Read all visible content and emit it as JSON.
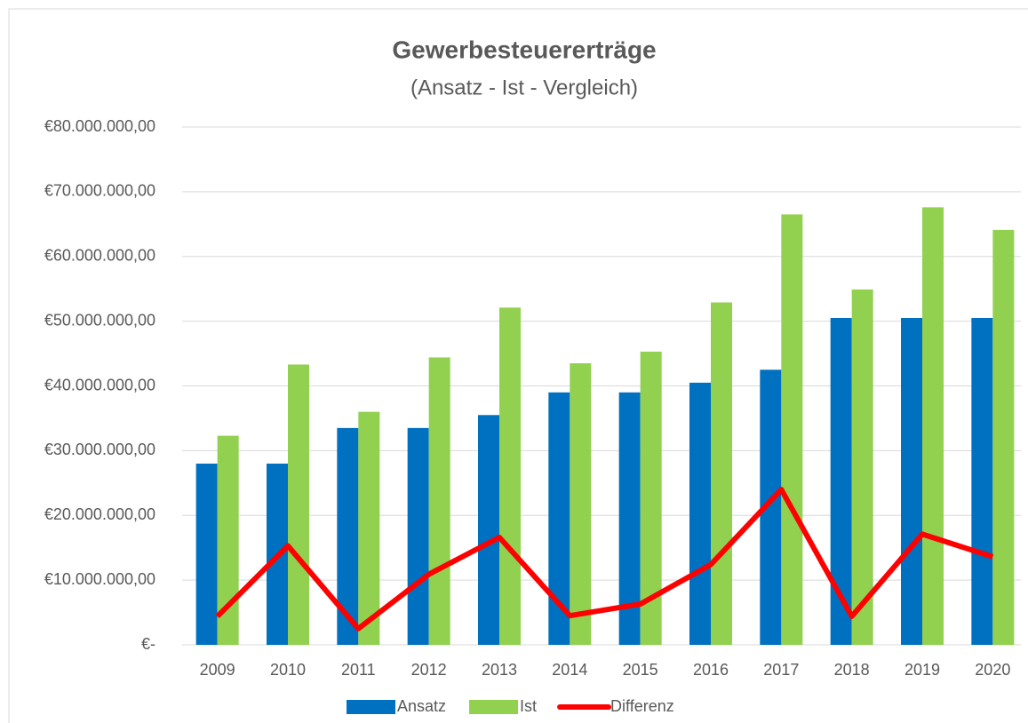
{
  "chart_data": {
    "type": "bar_line",
    "title": "Gewerbesteuererträge",
    "subtitle": "(Ansatz - Ist - Vergleich)",
    "categories": [
      "2009",
      "2010",
      "2011",
      "2012",
      "2013",
      "2014",
      "2015",
      "2016",
      "2017",
      "2018",
      "2019",
      "2020"
    ],
    "series": [
      {
        "name": "Ansatz",
        "type": "bar",
        "color": "#0070c0",
        "values": [
          28000000,
          28000000,
          33500000,
          33500000,
          35500000,
          39000000,
          39000000,
          40500000,
          42500000,
          50500000,
          50500000,
          50500000
        ]
      },
      {
        "name": "Ist",
        "type": "bar",
        "color": "#92d050",
        "values": [
          32300000,
          43300000,
          36000000,
          44400000,
          52100000,
          43500000,
          45300000,
          52900000,
          66500000,
          54900000,
          67600000,
          64100000
        ]
      },
      {
        "name": "Differenz",
        "type": "line",
        "color": "#ff0000",
        "values": [
          4400000,
          15300000,
          2500000,
          10900000,
          16600000,
          4500000,
          6300000,
          12400000,
          24000000,
          4400000,
          17100000,
          13600000
        ]
      }
    ],
    "ylim": [
      0,
      80000000
    ],
    "yticks": [
      {
        "value": 0,
        "label": "€-"
      },
      {
        "value": 10000000,
        "label": "€10.000.000,00"
      },
      {
        "value": 20000000,
        "label": "€20.000.000,00"
      },
      {
        "value": 30000000,
        "label": "€30.000.000,00"
      },
      {
        "value": 40000000,
        "label": "€40.000.000,00"
      },
      {
        "value": 50000000,
        "label": "€50.000.000,00"
      },
      {
        "value": 60000000,
        "label": "€60.000.000,00"
      },
      {
        "value": 70000000,
        "label": "€70.000.000,00"
      },
      {
        "value": 80000000,
        "label": "€80.000.000,00"
      }
    ],
    "grid": true,
    "legend": "bottom"
  }
}
